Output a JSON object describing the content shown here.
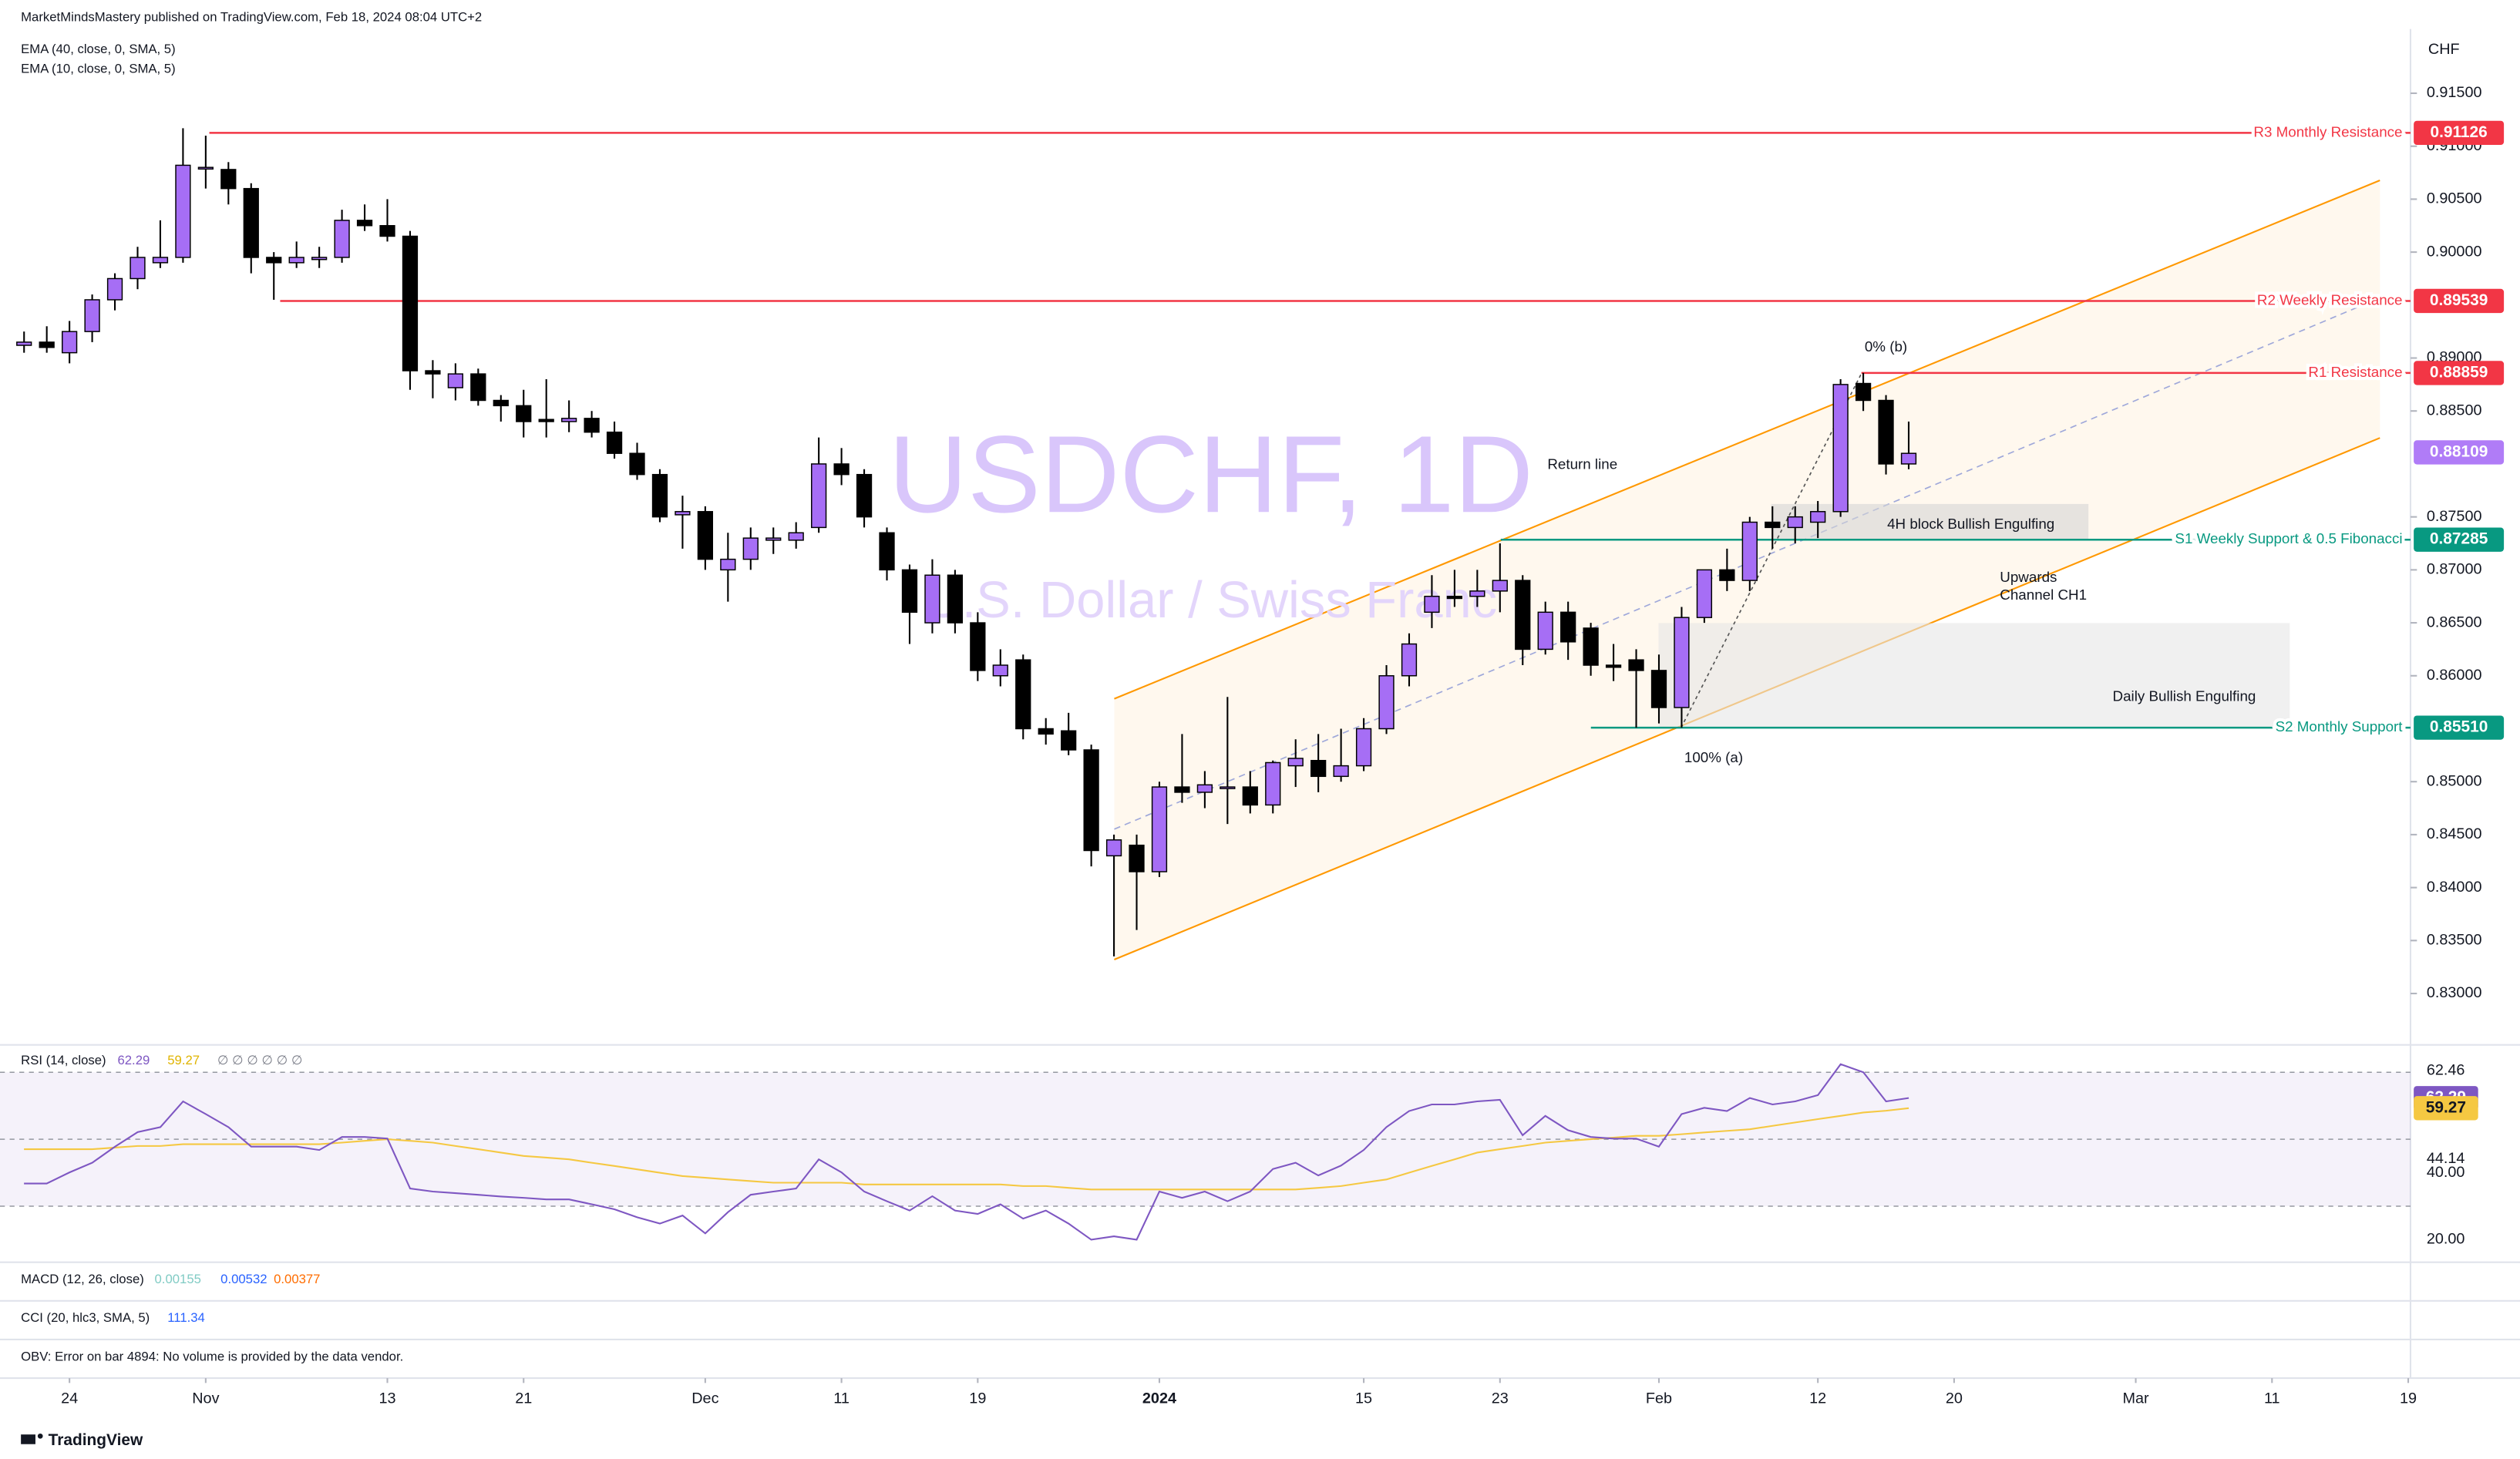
{
  "header": {
    "published": "MarketMindsMastery published on TradingView.com, Feb 18, 2024 08:04 UTC+2",
    "indicators": [
      "EMA (40, close, 0, SMA, 5)",
      "EMA (10, close, 0, SMA, 5)"
    ]
  },
  "chart_data": {
    "type": "candlestick",
    "watermark": {
      "symbol": "USDCHF, 1D",
      "description": "U.S. Dollar / Swiss Franc"
    },
    "currency": "CHF",
    "open": [
      0.8912,
      0.8915,
      0.8905,
      0.8925,
      0.8955,
      0.8975,
      0.899,
      0.8995,
      0.908,
      0.9078,
      0.906,
      0.8995,
      0.899,
      0.8993,
      0.8995,
      0.903,
      0.9025,
      0.9015,
      0.8888,
      0.8872,
      0.8885,
      0.886,
      0.8855,
      0.8842,
      0.884,
      0.8843,
      0.883,
      0.881,
      0.879,
      0.8752,
      0.8755,
      0.87,
      0.871,
      0.8728,
      0.8728,
      0.874,
      0.88,
      0.879,
      0.8735,
      0.87,
      0.865,
      0.8695,
      0.865,
      0.86,
      0.8615,
      0.855,
      0.8548,
      0.853,
      0.843,
      0.844,
      0.8415,
      0.8495,
      0.849,
      0.8495,
      0.8495,
      0.8478,
      0.8515,
      0.852,
      0.8505,
      0.8515,
      0.855,
      0.86,
      0.866,
      0.8675,
      0.8675,
      0.868,
      0.869,
      0.8625,
      0.866,
      0.8645,
      0.861,
      0.8615,
      0.8605,
      0.857,
      0.8655,
      0.87,
      0.869,
      0.8745,
      0.874,
      0.8745,
      0.8755,
      0.8876,
      0.886,
      0.88
    ],
    "high": [
      0.8925,
      0.893,
      0.8935,
      0.896,
      0.898,
      0.9005,
      0.903,
      0.9117,
      0.911,
      0.9085,
      0.9065,
      0.9,
      0.901,
      0.9005,
      0.904,
      0.9045,
      0.905,
      0.902,
      0.8898,
      0.8895,
      0.889,
      0.8865,
      0.887,
      0.888,
      0.886,
      0.885,
      0.884,
      0.882,
      0.8795,
      0.877,
      0.876,
      0.8735,
      0.874,
      0.874,
      0.8745,
      0.8825,
      0.8815,
      0.8795,
      0.874,
      0.8705,
      0.871,
      0.87,
      0.866,
      0.8625,
      0.862,
      0.856,
      0.8565,
      0.8535,
      0.845,
      0.845,
      0.85,
      0.8545,
      0.851,
      0.858,
      0.851,
      0.852,
      0.854,
      0.8545,
      0.855,
      0.856,
      0.861,
      0.864,
      0.8695,
      0.87,
      0.87,
      0.8725,
      0.8695,
      0.867,
      0.867,
      0.865,
      0.863,
      0.8625,
      0.862,
      0.8665,
      0.87,
      0.872,
      0.875,
      0.876,
      0.876,
      0.8765,
      0.888,
      0.8886,
      0.8865,
      0.884
    ],
    "low": [
      0.8905,
      0.8905,
      0.8895,
      0.8915,
      0.8945,
      0.8965,
      0.8985,
      0.899,
      0.906,
      0.9045,
      0.898,
      0.8955,
      0.8985,
      0.8985,
      0.899,
      0.902,
      0.901,
      0.887,
      0.8862,
      0.886,
      0.8855,
      0.884,
      0.8825,
      0.8825,
      0.883,
      0.8825,
      0.8805,
      0.8785,
      0.8745,
      0.872,
      0.87,
      0.867,
      0.87,
      0.8715,
      0.872,
      0.8735,
      0.878,
      0.874,
      0.869,
      0.863,
      0.864,
      0.864,
      0.8595,
      0.859,
      0.854,
      0.8535,
      0.8525,
      0.842,
      0.8335,
      0.836,
      0.841,
      0.848,
      0.8475,
      0.846,
      0.847,
      0.847,
      0.8495,
      0.849,
      0.85,
      0.851,
      0.8545,
      0.859,
      0.8645,
      0.8665,
      0.8665,
      0.866,
      0.861,
      0.862,
      0.8615,
      0.86,
      0.8595,
      0.8551,
      0.8555,
      0.8551,
      0.865,
      0.868,
      0.868,
      0.872,
      0.8725,
      0.873,
      0.875,
      0.885,
      0.879,
      0.8795
    ],
    "close": [
      0.8915,
      0.891,
      0.8925,
      0.8955,
      0.8975,
      0.8995,
      0.8995,
      0.9082,
      0.908,
      0.906,
      0.8995,
      0.899,
      0.8995,
      0.8995,
      0.903,
      0.9025,
      0.9015,
      0.8888,
      0.8885,
      0.8885,
      0.886,
      0.8855,
      0.884,
      0.884,
      0.8843,
      0.883,
      0.881,
      0.879,
      0.875,
      0.8755,
      0.871,
      0.871,
      0.873,
      0.873,
      0.8735,
      0.88,
      0.879,
      0.875,
      0.87,
      0.866,
      0.8695,
      0.865,
      0.8605,
      0.861,
      0.855,
      0.8545,
      0.853,
      0.8435,
      0.8445,
      0.8415,
      0.8495,
      0.849,
      0.8497,
      0.8495,
      0.8478,
      0.8518,
      0.8522,
      0.8505,
      0.8515,
      0.855,
      0.86,
      0.863,
      0.8675,
      0.8673,
      0.868,
      0.869,
      0.8625,
      0.866,
      0.8632,
      0.861,
      0.8608,
      0.8605,
      0.857,
      0.8655,
      0.87,
      0.869,
      0.8745,
      0.874,
      0.875,
      0.8755,
      0.8875,
      0.886,
      0.88,
      0.881
    ],
    "up_color": "#a66ef5",
    "down_color": "#000000",
    "ylim": [
      0.8253,
      0.9238
    ],
    "yticks": [
      {
        "value": 0.915,
        "label": "0.91500"
      },
      {
        "value": 0.91,
        "label": "0.91000"
      },
      {
        "value": 0.905,
        "label": "0.90500"
      },
      {
        "value": 0.9,
        "label": "0.90000"
      },
      {
        "value": 0.89,
        "label": "0.89000"
      },
      {
        "value": 0.885,
        "label": "0.88500"
      },
      {
        "value": 0.875,
        "label": "0.87500"
      },
      {
        "value": 0.87,
        "label": "0.87000"
      },
      {
        "value": 0.865,
        "label": "0.86500"
      },
      {
        "value": 0.86,
        "label": "0.86000"
      },
      {
        "value": 0.85,
        "label": "0.85000"
      },
      {
        "value": 0.845,
        "label": "0.84500"
      },
      {
        "value": 0.84,
        "label": "0.84000"
      },
      {
        "value": 0.835,
        "label": "0.83500"
      },
      {
        "value": 0.83,
        "label": "0.83000"
      }
    ],
    "xlim": [
      -1.06,
      105.1
    ],
    "xticks": [
      {
        "value": 2,
        "label": "24"
      },
      {
        "value": 8,
        "label": "Nov"
      },
      {
        "value": 16,
        "label": "13"
      },
      {
        "value": 22,
        "label": "21"
      },
      {
        "value": 30,
        "label": "Dec"
      },
      {
        "value": 36,
        "label": "11"
      },
      {
        "value": 42,
        "label": "19"
      },
      {
        "value": 50,
        "label": "2024"
      },
      {
        "value": 59,
        "label": "15"
      },
      {
        "value": 65,
        "label": "23"
      },
      {
        "value": 72,
        "label": "Feb"
      },
      {
        "value": 79,
        "label": "12"
      },
      {
        "value": 85,
        "label": "20"
      },
      {
        "value": 93,
        "label": "Mar"
      },
      {
        "value": 99,
        "label": "11"
      },
      {
        "value": 105,
        "label": "19"
      }
    ],
    "levels": [
      {
        "name": "R3 Monthly Resistance",
        "value": 0.91126,
        "label": "0.91126",
        "color": "#f23645"
      },
      {
        "name": "R2 Weekly Resistance",
        "value": 0.89539,
        "label": "0.89539",
        "color": "#f23645"
      },
      {
        "name": "R1 Resistance",
        "value": 0.88859,
        "label": "0.88859",
        "color": "#f23645"
      },
      {
        "name": "S1 Weekly Support & 0.5 Fibonacci",
        "value": 0.87285,
        "label": "0.87285",
        "color": "#089981"
      },
      {
        "name": "S2 Monthly Support",
        "value": 0.8551,
        "label": "0.85510",
        "color": "#089981"
      }
    ],
    "last_price": {
      "value": 0.88109,
      "label": "0.88109",
      "color": "#b07cf7"
    },
    "annotations": [
      "Return line",
      "0% (b)",
      "100% (a)",
      "4H block Bullish Engulfing",
      "Upwards",
      "Channel CH1",
      "Daily Bullish Engulfing"
    ]
  },
  "rsi": {
    "title": "RSI (14, close)",
    "values": [
      36.8,
      36.8,
      40.1,
      43.0,
      47.8,
      52.1,
      53.6,
      61.3,
      57.5,
      53.6,
      47.8,
      47.8,
      47.8,
      46.8,
      50.7,
      50.7,
      50.2,
      35.3,
      34.4,
      33.9,
      33.4,
      32.9,
      32.5,
      32.0,
      32.0,
      30.6,
      29.1,
      26.7,
      24.8,
      27.2,
      21.9,
      28.2,
      33.4,
      34.4,
      35.3,
      44.0,
      40.1,
      34.4,
      31.5,
      28.7,
      33.0,
      28.7,
      27.7,
      30.6,
      26.3,
      28.7,
      24.8,
      20.0,
      21.0,
      20.0,
      34.4,
      32.5,
      34.4,
      31.5,
      34.4,
      41.1,
      43.0,
      39.2,
      42.1,
      46.8,
      53.6,
      58.4,
      60.4,
      60.4,
      61.3,
      61.8,
      51.2,
      57.0,
      52.7,
      50.7,
      50.2,
      50.2,
      47.8,
      57.5,
      59.4,
      58.4,
      62.3,
      60.4,
      61.3,
      63.2,
      72.4,
      70.0,
      61.3,
      62.29
    ],
    "ma": [
      47,
      47,
      47,
      47,
      47.5,
      48,
      48,
      48.5,
      48.5,
      48.5,
      48.5,
      48.5,
      48.5,
      48.5,
      49,
      49.5,
      50,
      49.5,
      49,
      48,
      47,
      46,
      45,
      44.5,
      44,
      43,
      42,
      41,
      40,
      39,
      38.5,
      38,
      37.5,
      37,
      37,
      37,
      37,
      36.5,
      36.5,
      36.5,
      36.5,
      36.5,
      36.5,
      36.5,
      36,
      36,
      35.5,
      35,
      35,
      35,
      35,
      35,
      35,
      35,
      35,
      35,
      35,
      35.5,
      36,
      37,
      38,
      40,
      42,
      44,
      46,
      47,
      48,
      49,
      49.5,
      50,
      50.5,
      51,
      51,
      51.5,
      52,
      52.5,
      53,
      54,
      55,
      56,
      57,
      58,
      58.5,
      59.27
    ],
    "value": 62.29,
    "ma_value": 59.27,
    "extras": "∅ ∅ ∅ ∅ ∅ ∅",
    "color": "#7e57c2",
    "ma_color": "#f5c842",
    "ylim": [
      13.75,
      77.7
    ],
    "yticks": [
      {
        "value": 20,
        "label": "20.00"
      },
      {
        "value": 40,
        "label": "40.00"
      }
    ],
    "bands": [
      30,
      50,
      70
    ],
    "scale_labels": [
      62.46,
      44.14
    ]
  },
  "macd": {
    "title": "MACD (12, 26, close)",
    "values": [
      0.00155,
      0.00532,
      0.00377
    ],
    "colors": [
      "#80cbc4",
      "#2962ff",
      "#ff6d00"
    ]
  },
  "cci": {
    "title": "CCI (20, hlc3, SMA, 5)",
    "value": 111.34,
    "color": "#2962ff"
  },
  "obv": {
    "message": "OBV: Error on bar 4894: No volume is provided by the data vendor."
  },
  "footer": {
    "brand": "TradingView"
  }
}
